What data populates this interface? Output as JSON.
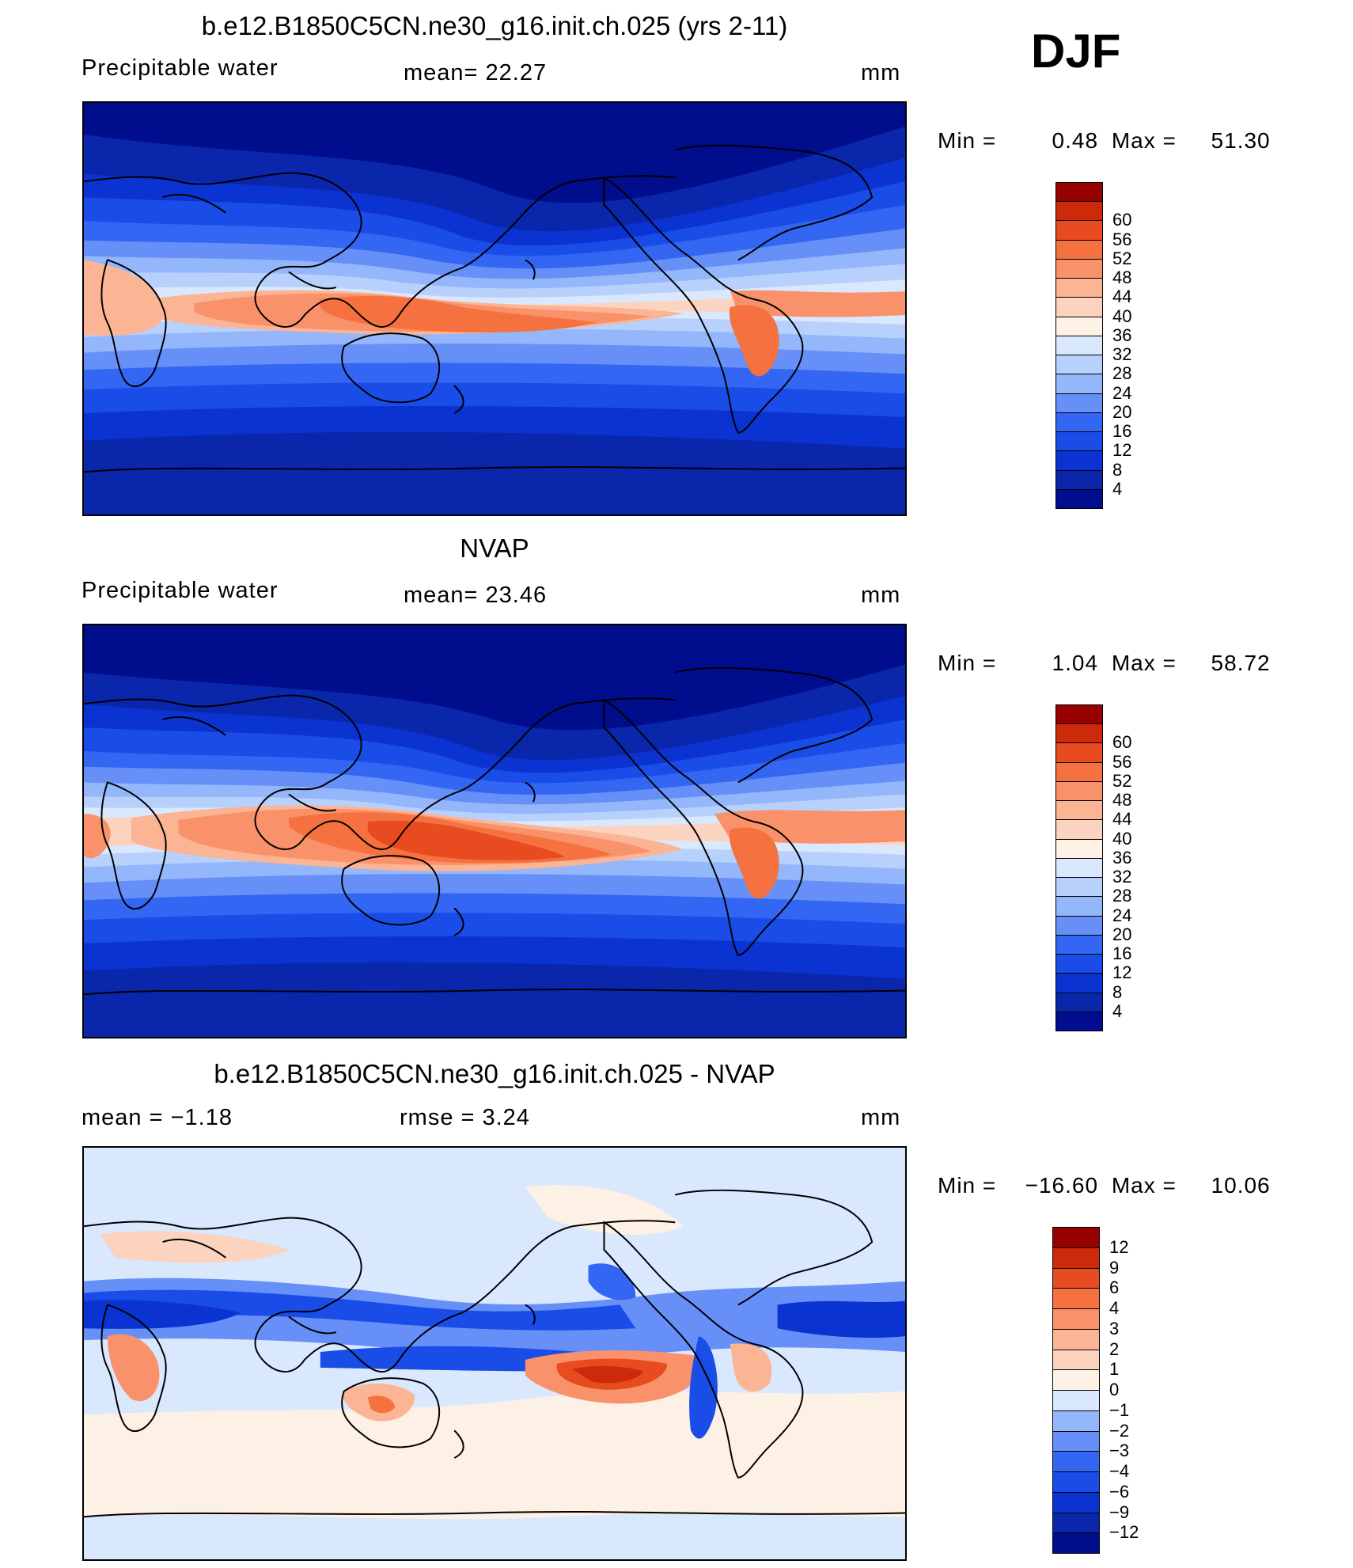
{
  "season": "DJF",
  "colors": {
    "fullfield": [
      "#000d8c",
      "#0a27ab",
      "#0b33d1",
      "#1a4de8",
      "#3366f2",
      "#6690f7",
      "#94b6fa",
      "#b8d1fc",
      "#d9e8fd",
      "#fdf0e5",
      "#fcd3bf",
      "#fbb494",
      "#f9916b",
      "#f5713f",
      "#e84b1f",
      "#cc2a0b",
      "#990000"
    ],
    "difference": [
      "#000d8c",
      "#0a27ab",
      "#0b33d1",
      "#1a4de8",
      "#3366f2",
      "#6690f7",
      "#94b6fa",
      "#d9e8fd",
      "#fdf0e5",
      "#fcd3bf",
      "#fbb494",
      "#f9916b",
      "#f5713f",
      "#e84b1f",
      "#cc2a0b",
      "#990000"
    ]
  },
  "panels": [
    {
      "title": "b.e12.B1850C5CN.ne30_g16.init.ch.025 (yrs 2-11)",
      "left_label": "Precipitable  water",
      "center_label": "mean=   22.27",
      "units": "mm",
      "min_label": "Min  =",
      "min_value": "0.48",
      "max_label": "Max  =",
      "max_value": "51.30",
      "colorbar_labels": [
        "60",
        "56",
        "52",
        "48",
        "44",
        "40",
        "36",
        "32",
        "28",
        "24",
        "20",
        "16",
        "12",
        "8",
        "4"
      ]
    },
    {
      "title": "NVAP",
      "left_label": "Precipitable  water",
      "center_label": "mean=   23.46",
      "units": "mm",
      "min_label": "Min  =",
      "min_value": "1.04",
      "max_label": "Max  =",
      "max_value": "58.72",
      "colorbar_labels": [
        "60",
        "56",
        "52",
        "48",
        "44",
        "40",
        "36",
        "32",
        "28",
        "24",
        "20",
        "16",
        "12",
        "8",
        "4"
      ]
    },
    {
      "title": "b.e12.B1850C5CN.ne30_g16.init.ch.025 - NVAP",
      "left_label": "mean  =    −1.18",
      "center_label": "rmse  =     3.24",
      "units": "mm",
      "min_label": "Min  =",
      "min_value": "−16.60",
      "max_label": "Max  =",
      "max_value": "10.06",
      "colorbar_labels": [
        "12",
        "9",
        "6",
        "4",
        "3",
        "2",
        "1",
        "0",
        "−1",
        "−2",
        "−3",
        "−4",
        "−6",
        "−9",
        "−12"
      ]
    }
  ]
}
